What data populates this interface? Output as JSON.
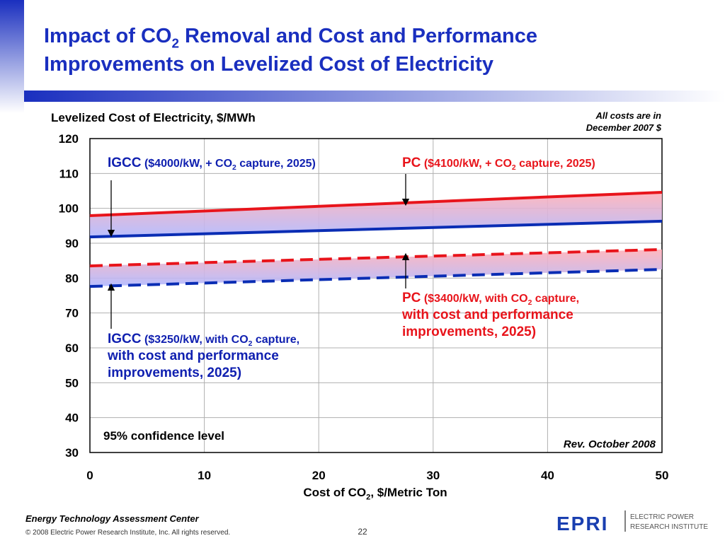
{
  "slide": {
    "title_lines": [
      [
        "Impact of CO",
        "2",
        " Removal and Cost and Performance"
      ],
      [
        "Improvements on Levelized Cost of Electricity"
      ]
    ]
  },
  "chart_data": {
    "type": "line",
    "y_axis_label": "Levelized Cost of Electricity, $/MWh",
    "x_axis_label": [
      "Cost of CO",
      "2",
      ", $/Metric Ton"
    ],
    "note_lines": [
      "All costs are in",
      "December 2007 $"
    ],
    "confidence_note": "95% confidence level",
    "revision_note": "Rev. October 2008",
    "x": [
      0,
      50
    ],
    "xlim": [
      0,
      50
    ],
    "xticks": [
      0,
      10,
      20,
      30,
      40,
      50
    ],
    "ylim": [
      30,
      120
    ],
    "yticks": [
      30,
      40,
      50,
      60,
      70,
      80,
      90,
      100,
      110,
      120
    ],
    "grid": true,
    "series": [
      {
        "name": "PC ($4100/kW, + CO2 capture, 2025)",
        "color": "#e8141b",
        "dashed": false,
        "values": [
          97.9,
          104.6
        ]
      },
      {
        "name": "IGCC ($4000/kW, + CO2 capture, 2025)",
        "color": "#0a2db4",
        "dashed": false,
        "values": [
          91.8,
          96.3
        ]
      },
      {
        "name": "PC ($3400/kW, with CO2 capture, with cost and performance improvements, 2025)",
        "color": "#e8141b",
        "dashed": true,
        "values": [
          83.5,
          88.2
        ]
      },
      {
        "name": "IGCC ($3250/kW, with CO2 capture, with cost and performance improvements, 2025)",
        "color": "#0a2db4",
        "dashed": true,
        "values": [
          77.6,
          82.5
        ]
      }
    ],
    "annotations": [
      {
        "color": "#1020b0",
        "lines": [
          [
            "IGCC",
            " ($4000/kW, + CO",
            "2",
            " capture, 2025)"
          ]
        ]
      },
      {
        "color": "#e8141b",
        "lines": [
          [
            "PC",
            " ($4100/kW, + CO",
            "2",
            " capture, 2025)"
          ]
        ]
      },
      {
        "color": "#e8141b",
        "lines": [
          [
            "PC",
            " ($3400/kW, with CO",
            "2",
            " capture,"
          ],
          [
            "with cost and performance"
          ],
          [
            "improvements, 2025)"
          ]
        ]
      },
      {
        "color": "#1020b0",
        "lines": [
          [
            "IGCC",
            " ($3250/kW, with CO",
            "2",
            " capture,"
          ],
          [
            "with cost and performance"
          ],
          [
            "improvements, 2025)"
          ]
        ]
      }
    ]
  },
  "footer": {
    "center": "Energy Technology Assessment Center",
    "copyright": "© 2008 Electric Power Research Institute, Inc. All rights reserved.",
    "page": "22",
    "logo": "EPRI",
    "org_lines": [
      "ELECTRIC POWER",
      "RESEARCH INSTITUTE"
    ]
  }
}
